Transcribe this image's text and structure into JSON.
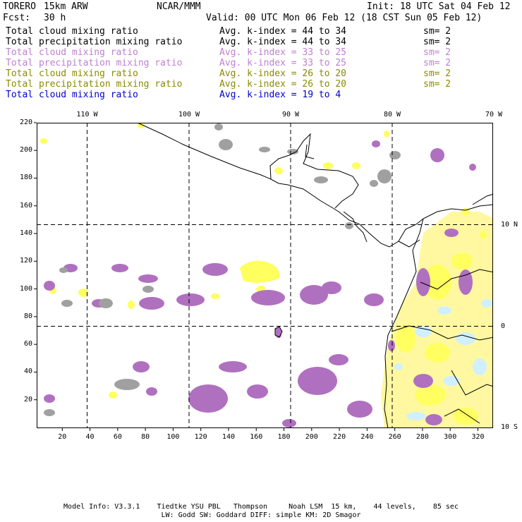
{
  "header": {
    "model": "TORERO",
    "resolution": "15km ARW",
    "center": "NCAR/MMM",
    "init": "Init: 18 UTC Sat 04 Feb 12",
    "fcst_label": "Fcst:",
    "fcst_value": "30 h",
    "valid": "Valid: 00 UTC Mon 06 Feb 12 (18 CST Sun 05 Feb 12)"
  },
  "legend": [
    {
      "variable": "Total cloud mixing ratio",
      "kindex": "Avg. k-index = 44 to 34",
      "sm": "sm= 2",
      "color": "#000000"
    },
    {
      "variable": "Total precipitation mixing ratio",
      "kindex": "Avg. k-index = 44 to 34",
      "sm": "sm= 2",
      "color": "#000000"
    },
    {
      "variable": "Total cloud mixing ratio",
      "kindex": "Avg. k-index = 33 to 25",
      "sm": "sm= 2",
      "color": "#c080d0"
    },
    {
      "variable": "Total precipitation mixing ratio",
      "kindex": "Avg. k-index = 33 to 25",
      "sm": "sm= 2",
      "color": "#c080d0"
    },
    {
      "variable": "Total cloud mixing ratio",
      "kindex": "Avg. k-index = 26 to 20",
      "sm": "sm= 2",
      "color": "#8a8a00"
    },
    {
      "variable": "Total precipitation mixing ratio",
      "kindex": "Avg. k-index = 26 to 20",
      "sm": "sm= 2",
      "color": "#8a8a00"
    },
    {
      "variable": "Total cloud mixing ratio",
      "kindex": "Avg. k-index = 19 to 4",
      "sm": "",
      "color": "#0000cc"
    }
  ],
  "map": {
    "top_lon_labels": [
      "110 W",
      "100 W",
      "90 W",
      "80 W",
      "70 W"
    ],
    "right_lat_labels": [
      "10 N",
      "0",
      "10 S"
    ],
    "left_grid_labels": [
      "220",
      "200",
      "180",
      "160",
      "140",
      "120",
      "100",
      "80",
      "60",
      "40",
      "20"
    ],
    "bottom_grid_labels": [
      "20",
      "40",
      "60",
      "80",
      "100",
      "120",
      "140",
      "160",
      "180",
      "200",
      "220",
      "240",
      "260",
      "280",
      "300",
      "320"
    ],
    "colors": {
      "gray": "#a0a0a0",
      "purple": "#b070c0",
      "yellow": "#ffff60",
      "lightblue": "#d0f0ff",
      "lightyellow": "#fff8a0"
    }
  },
  "footer": {
    "line1": "Model Info: V3.3.1    Tiedtke YSU PBL   Thompson     Noah LSM  15 km,    44 levels,    85 sec",
    "line2": "LW: Godd SW: Goddard DIFF: simple KM: 2D Smagor"
  }
}
